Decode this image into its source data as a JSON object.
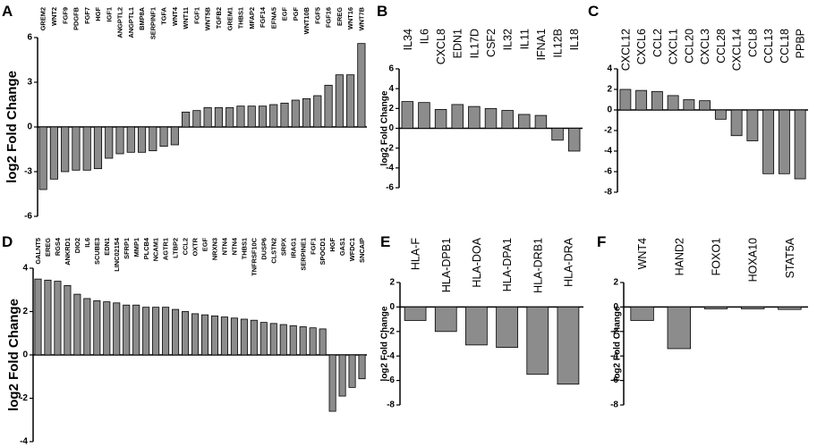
{
  "chart_data": [
    {
      "panel": "A",
      "type": "bar",
      "ylabel": "log2 Fold Change",
      "ylim": [
        -6,
        6
      ],
      "yticks": [
        -6,
        -3,
        0,
        3,
        6
      ],
      "label_style": "small",
      "categories": [
        "GREM2",
        "WNT2",
        "FGF9",
        "PDGFB",
        "FGF7",
        "HGF",
        "IGF1",
        "ANGPTL2",
        "ANGPTL1",
        "BMP8A",
        "SERPINF1",
        "TGFA",
        "WNT4",
        "WNT11",
        "FGF1",
        "WNT5B",
        "TGFB2",
        "GREM1",
        "THBS1",
        "MFAP2",
        "FGF14",
        "EFNA5",
        "EGF",
        "PGF",
        "WNT10B",
        "FGF5",
        "FGF16",
        "EREG",
        "WNT16",
        "WNT7B"
      ],
      "values": [
        -4.2,
        -3.5,
        -3.0,
        -2.9,
        -2.9,
        -2.8,
        -2.1,
        -1.8,
        -1.7,
        -1.7,
        -1.6,
        -1.3,
        -1.2,
        1.0,
        1.1,
        1.3,
        1.3,
        1.3,
        1.4,
        1.4,
        1.4,
        1.5,
        1.6,
        1.8,
        1.9,
        2.1,
        2.8,
        3.5,
        3.5,
        5.6
      ]
    },
    {
      "panel": "B",
      "type": "bar",
      "ylabel": "log2 Fold Change",
      "ylim": [
        -6,
        6
      ],
      "yticks": [
        -6,
        -4,
        -2,
        0,
        2,
        4,
        6
      ],
      "label_style": "large",
      "categories": [
        "IL34",
        "IL6",
        "CXCL8",
        "EDN1",
        "IL17D",
        "CSF2",
        "IL32",
        "IL11",
        "IFNA1",
        "IL12B",
        "IL18"
      ],
      "values": [
        2.7,
        2.6,
        1.9,
        2.4,
        2.2,
        2.0,
        1.8,
        1.4,
        1.3,
        -1.2,
        -2.3
      ]
    },
    {
      "panel": "C",
      "type": "bar",
      "ylabel": "",
      "ylim": [
        -8,
        4
      ],
      "yticks": [
        -8,
        -6,
        -4,
        -2,
        0,
        2,
        4
      ],
      "label_style": "large",
      "categories": [
        "CXCL12",
        "CXCL6",
        "CCL2",
        "CXCL1",
        "CCL20",
        "CXCL3",
        "CCL28",
        "CXCL14",
        "CCL8",
        "CCL13",
        "CCL18",
        "PPBP"
      ],
      "values": [
        2.0,
        1.9,
        1.8,
        1.4,
        1.0,
        0.9,
        -0.9,
        -2.5,
        -3.0,
        -6.2,
        -6.2,
        -6.7
      ]
    },
    {
      "panel": "D",
      "type": "bar",
      "ylabel": "log2 Fold Change",
      "ylim": [
        -4,
        4
      ],
      "yticks": [
        -4,
        -2,
        0,
        2,
        4
      ],
      "label_style": "small",
      "categories": [
        "GALNT5",
        "EREG",
        "RGS4",
        "ANKRD1",
        "DIO2",
        "IL6",
        "SCUBE3",
        "EDN1",
        "LINC02154",
        "SFRP1",
        "MMP1",
        "PLCB4",
        "NCAM1",
        "AGTR1",
        "LTBP2",
        "CCL2",
        "OXTR",
        "EGF",
        "NRXN3",
        "NTN4",
        "NTN4",
        "THBS1",
        "TNFRSF10C",
        "DUSP6",
        "CLSTN2",
        "SRPX",
        "IRAG1",
        "SERPINE1",
        "FGF1",
        "SPOCD1",
        "HGF",
        "GAS1",
        "WFDC1",
        "SNCAIP"
      ],
      "values": [
        3.5,
        3.45,
        3.4,
        3.2,
        2.8,
        2.6,
        2.5,
        2.45,
        2.4,
        2.3,
        2.3,
        2.2,
        2.2,
        2.2,
        2.1,
        2.0,
        1.9,
        1.85,
        1.8,
        1.75,
        1.7,
        1.65,
        1.6,
        1.5,
        1.45,
        1.4,
        1.35,
        1.3,
        1.25,
        1.2,
        -2.6,
        -1.9,
        -1.5,
        -1.1
      ]
    },
    {
      "panel": "E",
      "type": "bar",
      "ylabel": "log2 Fold Change",
      "ylim": [
        -8,
        2
      ],
      "yticks": [
        -8,
        -6,
        -4,
        -2,
        0,
        2
      ],
      "label_style": "large",
      "categories": [
        "HLA-F",
        "HLA-DPB1",
        "HLA-DOA",
        "HLA-DPA1",
        "HLA-DRB1",
        "HLA-DRA"
      ],
      "values": [
        -1.1,
        -2.0,
        -3.1,
        -3.3,
        -5.5,
        -6.3
      ]
    },
    {
      "panel": "F",
      "type": "bar",
      "ylabel": "log2 Fold Change",
      "ylim": [
        -8,
        2
      ],
      "yticks": [
        -8,
        -6,
        -4,
        -2,
        0,
        2
      ],
      "label_style": "large",
      "categories": [
        "WNT4",
        "HAND2",
        "FOXO1",
        "HOXA10",
        "STAT5A"
      ],
      "values": [
        -1.1,
        -3.4,
        -0.15,
        -0.15,
        -0.2
      ]
    }
  ],
  "colors": {
    "bar": "#8c8c8c",
    "edge": "#000000",
    "axis": "#000000"
  }
}
